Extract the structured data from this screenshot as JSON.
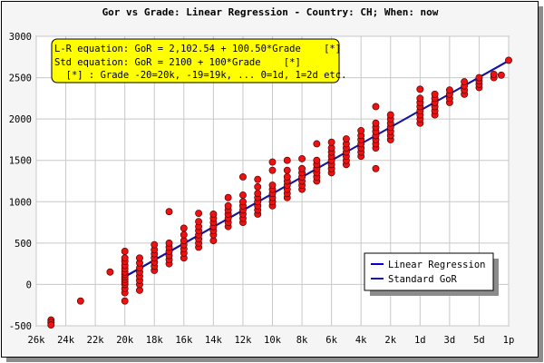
{
  "chart_data": {
    "type": "scatter",
    "title": "Gor vs Grade: Linear Regression - Country: CH; When: now",
    "xlabel": "",
    "ylabel": "",
    "x_tick_values": [
      -26,
      -24,
      -22,
      -20,
      -18,
      -16,
      -14,
      -12,
      -10,
      -8,
      -6,
      -4,
      -2,
      0,
      2,
      4,
      6
    ],
    "x_tick_labels": [
      "26k",
      "24k",
      "22k",
      "20k",
      "18k",
      "16k",
      "14k",
      "12k",
      "10k",
      "8k",
      "6k",
      "4k",
      "2k",
      "1d",
      "3d",
      "5d",
      "1p"
    ],
    "xlim": [
      -26,
      6
    ],
    "ylim": [
      -500,
      3000
    ],
    "y_ticks": [
      -500,
      0,
      500,
      1000,
      1500,
      2000,
      2500,
      3000
    ],
    "grid": true,
    "annotation_lines": [
      "L-R equation: GoR = 2,102.54 + 100.50*Grade    [*]",
      "Std equation: GoR = 2100 + 100*Grade    [*]",
      "  [*] : Grade -20=20k, -19=19k, ... 0=1d, 1=2d etc."
    ],
    "legend_position": "bottom-right",
    "lines": [
      {
        "name": "Linear Regression",
        "intercept": 2102.54,
        "slope": 100.5,
        "color": "#0000cc"
      },
      {
        "name": "Standard GoR",
        "intercept": 2100,
        "slope": 100,
        "color": "#1a1a8c"
      }
    ],
    "point_color": "#ee1111",
    "points": [
      [
        -25,
        -430
      ],
      [
        -25,
        -460
      ],
      [
        -25,
        -490
      ],
      [
        -23,
        -200
      ],
      [
        -21,
        150
      ],
      [
        -20,
        -200
      ],
      [
        -20,
        -100
      ],
      [
        -20,
        -50
      ],
      [
        -20,
        0
      ],
      [
        -20,
        30
      ],
      [
        -20,
        60
      ],
      [
        -20,
        90
      ],
      [
        -20,
        120
      ],
      [
        -20,
        150
      ],
      [
        -20,
        190
      ],
      [
        -20,
        230
      ],
      [
        -20,
        280
      ],
      [
        -20,
        320
      ],
      [
        -20,
        400
      ],
      [
        -19,
        -70
      ],
      [
        -19,
        0
      ],
      [
        -19,
        50
      ],
      [
        -19,
        100
      ],
      [
        -19,
        150
      ],
      [
        -19,
        200
      ],
      [
        -19,
        260
      ],
      [
        -19,
        320
      ],
      [
        -18,
        170
      ],
      [
        -18,
        220
      ],
      [
        -18,
        270
      ],
      [
        -18,
        320
      ],
      [
        -18,
        370
      ],
      [
        -18,
        420
      ],
      [
        -18,
        480
      ],
      [
        -17,
        250
      ],
      [
        -17,
        300
      ],
      [
        -17,
        350
      ],
      [
        -17,
        400
      ],
      [
        -17,
        450
      ],
      [
        -17,
        500
      ],
      [
        -17,
        880
      ],
      [
        -16,
        320
      ],
      [
        -16,
        380
      ],
      [
        -16,
        430
      ],
      [
        -16,
        480
      ],
      [
        -16,
        530
      ],
      [
        -16,
        600
      ],
      [
        -16,
        680
      ],
      [
        -15,
        450
      ],
      [
        -15,
        500
      ],
      [
        -15,
        550
      ],
      [
        -15,
        600
      ],
      [
        -15,
        650
      ],
      [
        -15,
        700
      ],
      [
        -15,
        760
      ],
      [
        -15,
        860
      ],
      [
        -14,
        530
      ],
      [
        -14,
        600
      ],
      [
        -14,
        650
      ],
      [
        -14,
        700
      ],
      [
        -14,
        750
      ],
      [
        -14,
        800
      ],
      [
        -14,
        850
      ],
      [
        -13,
        700
      ],
      [
        -13,
        750
      ],
      [
        -13,
        800
      ],
      [
        -13,
        850
      ],
      [
        -13,
        900
      ],
      [
        -13,
        950
      ],
      [
        -13,
        1050
      ],
      [
        -12,
        750
      ],
      [
        -12,
        800
      ],
      [
        -12,
        850
      ],
      [
        -12,
        900
      ],
      [
        -12,
        950
      ],
      [
        -12,
        1000
      ],
      [
        -12,
        1080
      ],
      [
        -12,
        1300
      ],
      [
        -11,
        850
      ],
      [
        -11,
        900
      ],
      [
        -11,
        950
      ],
      [
        -11,
        1000
      ],
      [
        -11,
        1050
      ],
      [
        -11,
        1100
      ],
      [
        -11,
        1180
      ],
      [
        -11,
        1270
      ],
      [
        -10,
        950
      ],
      [
        -10,
        1000
      ],
      [
        -10,
        1050
      ],
      [
        -10,
        1100
      ],
      [
        -10,
        1150
      ],
      [
        -10,
        1200
      ],
      [
        -10,
        1380
      ],
      [
        -10,
        1480
      ],
      [
        -9,
        1050
      ],
      [
        -9,
        1100
      ],
      [
        -9,
        1150
      ],
      [
        -9,
        1200
      ],
      [
        -9,
        1250
      ],
      [
        -9,
        1300
      ],
      [
        -9,
        1380
      ],
      [
        -9,
        1500
      ],
      [
        -8,
        1150
      ],
      [
        -8,
        1200
      ],
      [
        -8,
        1250
      ],
      [
        -8,
        1300
      ],
      [
        -8,
        1350
      ],
      [
        -8,
        1400
      ],
      [
        -8,
        1520
      ],
      [
        -7,
        1250
      ],
      [
        -7,
        1300
      ],
      [
        -7,
        1350
      ],
      [
        -7,
        1400
      ],
      [
        -7,
        1450
      ],
      [
        -7,
        1500
      ],
      [
        -7,
        1700
      ],
      [
        -6,
        1350
      ],
      [
        -6,
        1400
      ],
      [
        -6,
        1450
      ],
      [
        -6,
        1500
      ],
      [
        -6,
        1550
      ],
      [
        -6,
        1600
      ],
      [
        -6,
        1650
      ],
      [
        -6,
        1720
      ],
      [
        -5,
        1450
      ],
      [
        -5,
        1500
      ],
      [
        -5,
        1550
      ],
      [
        -5,
        1600
      ],
      [
        -5,
        1650
      ],
      [
        -5,
        1700
      ],
      [
        -5,
        1760
      ],
      [
        -4,
        1550
      ],
      [
        -4,
        1600
      ],
      [
        -4,
        1650
      ],
      [
        -4,
        1700
      ],
      [
        -4,
        1750
      ],
      [
        -4,
        1800
      ],
      [
        -4,
        1860
      ],
      [
        -3,
        1400
      ],
      [
        -3,
        1650
      ],
      [
        -3,
        1700
      ],
      [
        -3,
        1750
      ],
      [
        -3,
        1800
      ],
      [
        -3,
        1850
      ],
      [
        -3,
        1900
      ],
      [
        -3,
        1950
      ],
      [
        -3,
        2150
      ],
      [
        -2,
        1750
      ],
      [
        -2,
        1800
      ],
      [
        -2,
        1850
      ],
      [
        -2,
        1900
      ],
      [
        -2,
        1950
      ],
      [
        -2,
        2000
      ],
      [
        -2,
        2050
      ],
      [
        0,
        1950
      ],
      [
        0,
        2000
      ],
      [
        0,
        2050
      ],
      [
        0,
        2100
      ],
      [
        0,
        2150
      ],
      [
        0,
        2200
      ],
      [
        0,
        2250
      ],
      [
        0,
        2360
      ],
      [
        1,
        2050
      ],
      [
        1,
        2100
      ],
      [
        1,
        2150
      ],
      [
        1,
        2200
      ],
      [
        1,
        2250
      ],
      [
        1,
        2300
      ],
      [
        2,
        2200
      ],
      [
        2,
        2250
      ],
      [
        2,
        2300
      ],
      [
        2,
        2350
      ],
      [
        3,
        2300
      ],
      [
        3,
        2350
      ],
      [
        3,
        2400
      ],
      [
        3,
        2450
      ],
      [
        4,
        2380
      ],
      [
        4,
        2420
      ],
      [
        4,
        2460
      ],
      [
        4,
        2500
      ],
      [
        5,
        2500
      ],
      [
        5,
        2540
      ],
      [
        5.5,
        2530
      ],
      [
        6,
        2710
      ]
    ]
  },
  "legend": {
    "items": [
      {
        "label": "Linear Regression",
        "color": "#0000cc"
      },
      {
        "label": "Standard GoR",
        "color": "#1a1a8c"
      }
    ]
  }
}
